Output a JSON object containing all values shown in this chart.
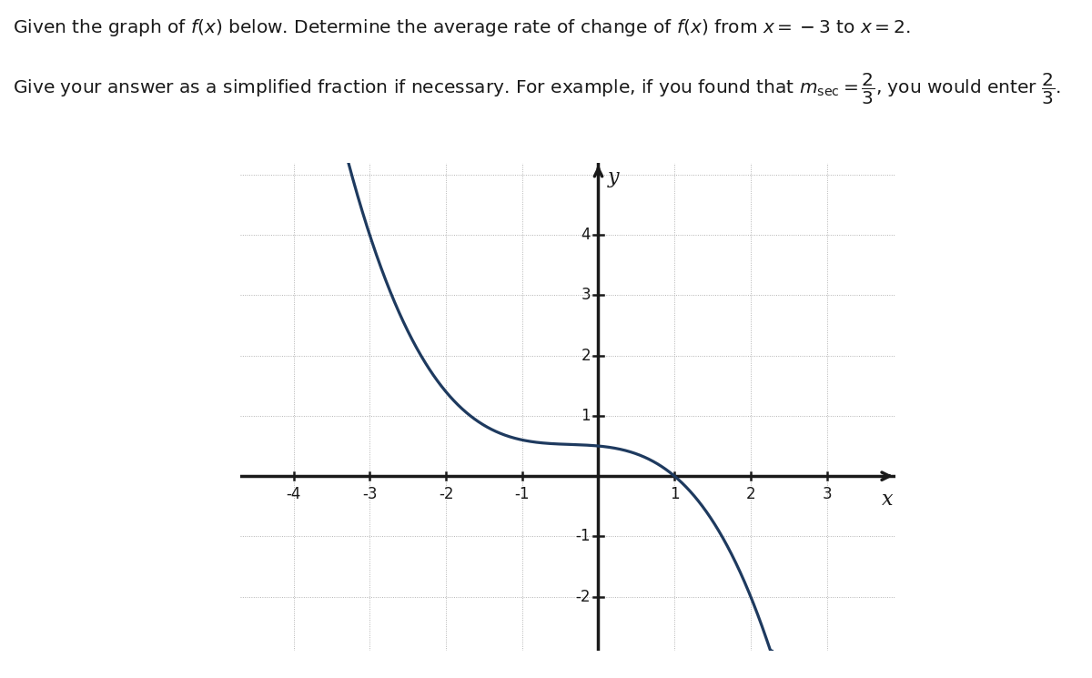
{
  "curve_color": "#1e3a5f",
  "axis_color": "#1a1a1a",
  "grid_color": "#aaaaaa",
  "background_color": "#ffffff",
  "xlim": [
    -4.7,
    3.9
  ],
  "ylim": [
    -2.9,
    5.2
  ],
  "xticks": [
    -4,
    -3,
    -2,
    -1,
    1,
    2,
    3
  ],
  "yticks": [
    -2,
    -1,
    1,
    2,
    3,
    4
  ],
  "xlabel": "x",
  "ylabel": "y",
  "curve_linewidth": 2.3,
  "axis_linewidth": 2.5,
  "grid_linewidth": 0.65,
  "tick_fontsize": 12,
  "label_fontsize": 16,
  "text_fontsize": 14.5,
  "curve_coeffs": [
    -0.1833,
    -0.2,
    -0.1167,
    0.5
  ],
  "curve_x_start": -4.05,
  "curve_x_end": 3.6
}
